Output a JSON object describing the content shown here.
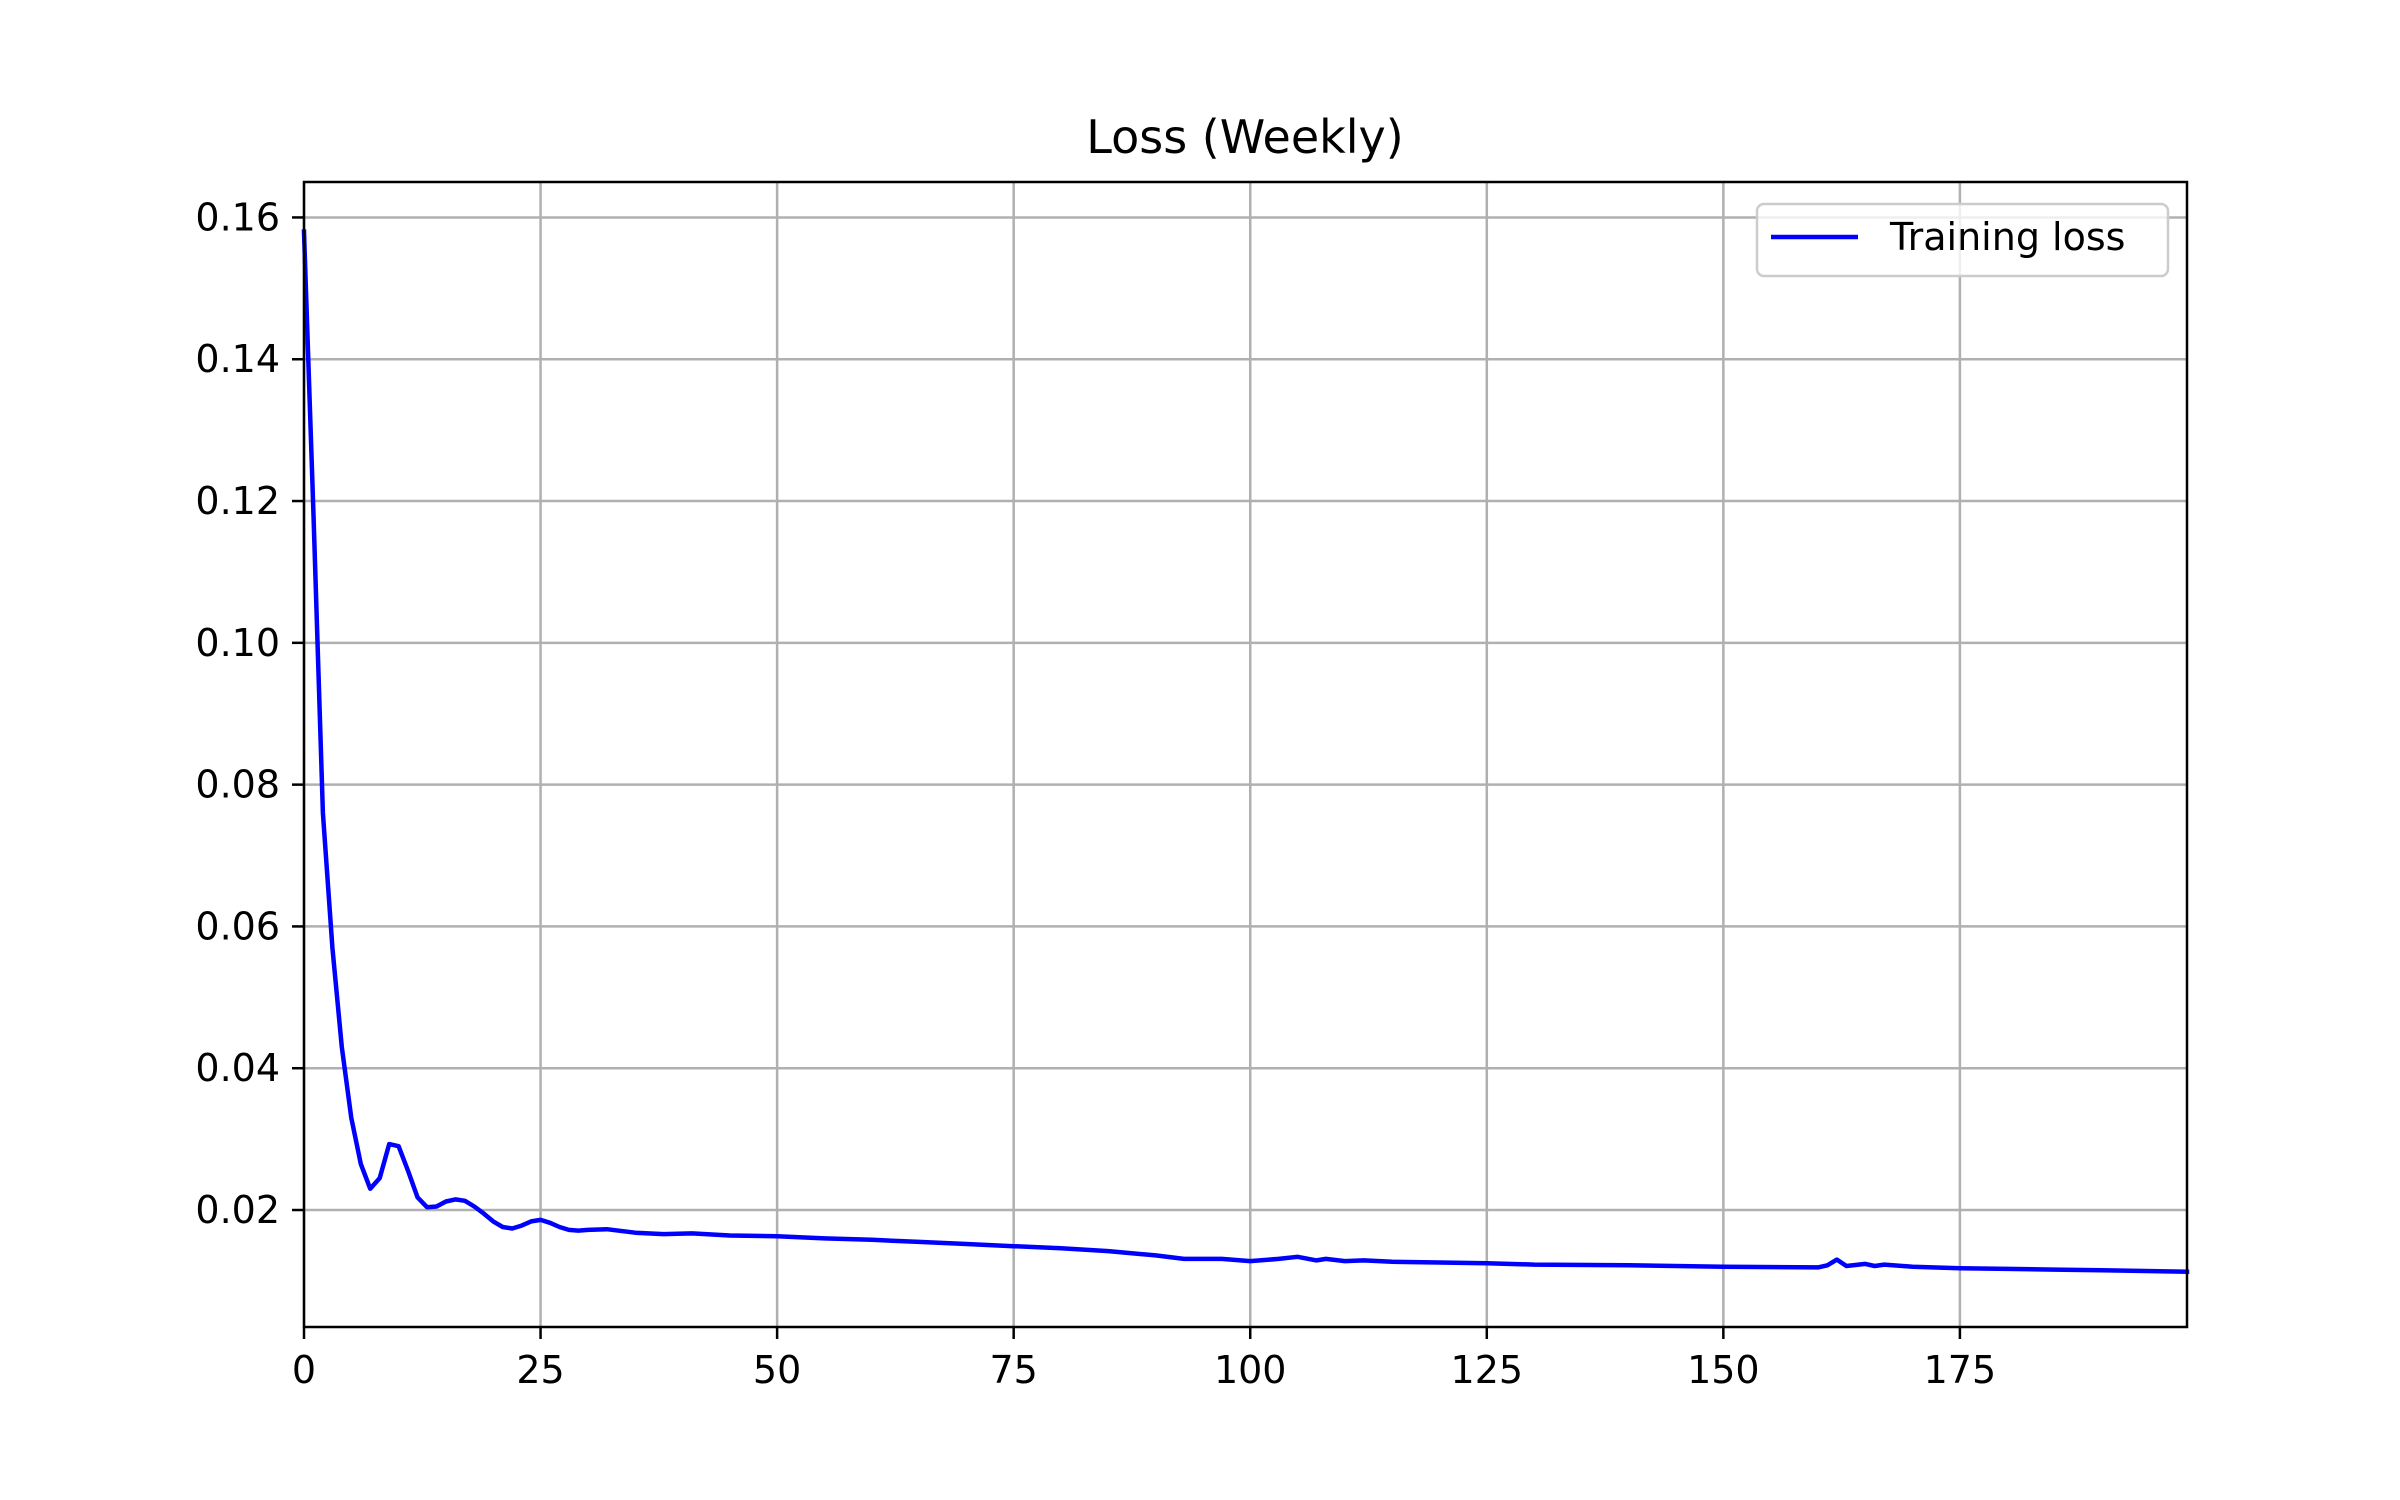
{
  "chart_data": {
    "type": "line",
    "title": "Loss (Weekly)",
    "xlabel": "",
    "ylabel": "",
    "xlim": [
      0,
      199
    ],
    "ylim": [
      0.0035,
      0.165
    ],
    "x_ticks": [
      0,
      25,
      50,
      75,
      100,
      125,
      150,
      175
    ],
    "y_ticks": [
      0.02,
      0.04,
      0.06,
      0.08,
      0.1,
      0.12,
      0.14,
      0.16
    ],
    "y_tick_labels": [
      "0.02",
      "0.04",
      "0.06",
      "0.08",
      "0.10",
      "0.12",
      "0.14",
      "0.16"
    ],
    "grid": true,
    "legend_position": "top-right",
    "series": [
      {
        "name": "Training loss",
        "color": "#0000ff",
        "x": [
          0,
          1,
          2,
          3,
          4,
          5,
          6,
          7,
          8,
          9,
          10,
          11,
          12,
          13,
          14,
          15,
          16,
          17,
          18,
          19,
          20,
          21,
          22,
          23,
          24,
          25,
          26,
          27,
          28,
          29,
          30,
          32,
          35,
          38,
          41,
          45,
          50,
          55,
          60,
          65,
          70,
          75,
          80,
          85,
          90,
          93,
          95,
          97,
          100,
          103,
          105,
          107,
          108,
          110,
          112,
          115,
          120,
          125,
          130,
          140,
          150,
          160,
          161,
          162,
          163,
          165,
          166,
          167,
          170,
          175,
          180,
          185,
          190,
          199
        ],
        "values": [
          0.158,
          0.118,
          0.076,
          0.057,
          0.043,
          0.033,
          0.0265,
          0.023,
          0.0245,
          0.0293,
          0.029,
          0.0255,
          0.0218,
          0.0204,
          0.0205,
          0.0212,
          0.0215,
          0.0213,
          0.0205,
          0.0195,
          0.0184,
          0.0176,
          0.0174,
          0.0178,
          0.0184,
          0.0186,
          0.0182,
          0.0176,
          0.0172,
          0.0171,
          0.0172,
          0.0173,
          0.0168,
          0.0166,
          0.0167,
          0.0164,
          0.0163,
          0.016,
          0.0158,
          0.0155,
          0.0152,
          0.0149,
          0.0146,
          0.0142,
          0.0136,
          0.0131,
          0.0131,
          0.0131,
          0.0128,
          0.0131,
          0.0134,
          0.0129,
          0.0131,
          0.0128,
          0.0129,
          0.0127,
          0.0126,
          0.0125,
          0.0123,
          0.0122,
          0.012,
          0.0119,
          0.0122,
          0.013,
          0.0121,
          0.0124,
          0.0121,
          0.0123,
          0.012,
          0.0118,
          0.0117,
          0.0116,
          0.0115,
          0.0113
        ]
      }
    ]
  }
}
